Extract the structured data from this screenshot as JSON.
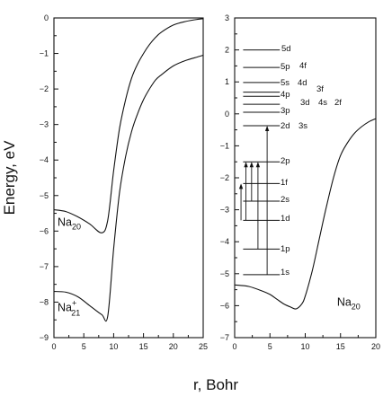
{
  "chart_data": [
    {
      "type": "line",
      "xlabel": "r, Bohr",
      "ylabel": "Energy, eV",
      "xlim": [
        0,
        25
      ],
      "ylim": [
        -9,
        0
      ],
      "xticks": [
        "0",
        "5",
        "10",
        "15",
        "20",
        "25"
      ],
      "yticks": [
        "0",
        "−1",
        "−2",
        "−3",
        "−4",
        "−5",
        "−6",
        "−7",
        "−8",
        "−9"
      ],
      "series": [
        {
          "name": "Na20",
          "x": [
            0,
            2,
            4,
            6,
            8,
            9,
            10,
            11,
            12,
            13,
            14,
            15,
            16,
            17,
            18,
            20,
            22,
            24,
            25
          ],
          "y": [
            -5.4,
            -5.45,
            -5.6,
            -5.8,
            -6.05,
            -5.7,
            -4.3,
            -3.1,
            -2.3,
            -1.7,
            -1.3,
            -1.0,
            -0.75,
            -0.55,
            -0.4,
            -0.2,
            -0.1,
            -0.04,
            -0.02
          ]
        },
        {
          "name": "Na21+",
          "x": [
            0,
            2,
            4,
            6,
            8,
            9,
            10,
            11,
            12,
            13,
            14,
            15,
            16,
            17,
            18,
            20,
            22,
            24,
            25
          ],
          "y": [
            -7.7,
            -7.72,
            -7.85,
            -8.1,
            -8.35,
            -8.4,
            -6.5,
            -4.9,
            -3.9,
            -3.2,
            -2.7,
            -2.3,
            -2.0,
            -1.75,
            -1.6,
            -1.35,
            -1.2,
            -1.1,
            -1.05
          ]
        }
      ],
      "annotations": [
        {
          "text": "Na",
          "sub": "20",
          "sup": "",
          "x": 0.6,
          "y": -5.85
        },
        {
          "text": "Na",
          "sub": "21",
          "sup": "+",
          "x": 0.6,
          "y": -8.25
        }
      ]
    },
    {
      "type": "line",
      "xlabel": "",
      "ylabel": "",
      "xlim": [
        0,
        20
      ],
      "ylim": [
        -7,
        3
      ],
      "xticks": [
        "0",
        "5",
        "10",
        "15",
        "20"
      ],
      "yticks": [
        "3",
        "2",
        "1",
        "0",
        "−1",
        "−2",
        "−3",
        "−4",
        "−5",
        "−6",
        "−7"
      ],
      "series": [
        {
          "name": "Na20",
          "x": [
            0,
            2,
            4,
            5,
            6,
            7,
            8,
            8.7,
            9.5,
            10,
            11,
            12,
            13,
            14,
            15,
            16,
            17,
            18,
            19,
            20
          ],
          "y": [
            -5.35,
            -5.4,
            -5.55,
            -5.65,
            -5.8,
            -5.95,
            -6.05,
            -6.1,
            -5.95,
            -5.7,
            -4.9,
            -3.9,
            -2.9,
            -2.0,
            -1.3,
            -0.9,
            -0.6,
            -0.4,
            -0.25,
            -0.15
          ]
        }
      ],
      "levels": [
        {
          "labels": [
            "1s"
          ],
          "energy": -5.03
        },
        {
          "labels": [
            "1p"
          ],
          "energy": -4.23
        },
        {
          "labels": [
            "1d"
          ],
          "energy": -3.33
        },
        {
          "labels": [
            "2s"
          ],
          "energy": -2.73
        },
        {
          "labels": [
            "1f"
          ],
          "energy": -2.18
        },
        {
          "labels": [
            "2p"
          ],
          "energy": -1.5
        },
        {
          "labels": [
            "2d",
            "3s"
          ],
          "energy": -0.37
        },
        {
          "labels": [
            "3p"
          ],
          "energy": 0.05
        },
        {
          "labels": [
            "3d",
            "4s",
            "2f"
          ],
          "energy": 0.3
        },
        {
          "labels": [
            "3f"
          ],
          "energy": 0.55
        },
        {
          "labels": [
            "4p"
          ],
          "energy": 0.68
        },
        {
          "labels": [
            "5s",
            "4d"
          ],
          "energy": 0.98
        },
        {
          "labels": [
            "5p",
            "4f"
          ],
          "energy": 1.45
        },
        {
          "labels": [
            "5d"
          ],
          "energy": 2.0
        }
      ],
      "transitions": [
        {
          "x": 0.9,
          "from": -3.33,
          "to": -2.18
        },
        {
          "x": 1.6,
          "from": -3.33,
          "to": -1.5
        },
        {
          "x": 2.4,
          "from": -2.73,
          "to": -1.5
        },
        {
          "x": 3.3,
          "from": -4.23,
          "to": -1.5
        },
        {
          "x": 4.6,
          "from": -5.03,
          "to": -0.37
        }
      ],
      "annotations": [
        {
          "text": "Na",
          "sub": "20",
          "sup": "",
          "x": 14.5,
          "y": -6.0
        }
      ]
    }
  ]
}
